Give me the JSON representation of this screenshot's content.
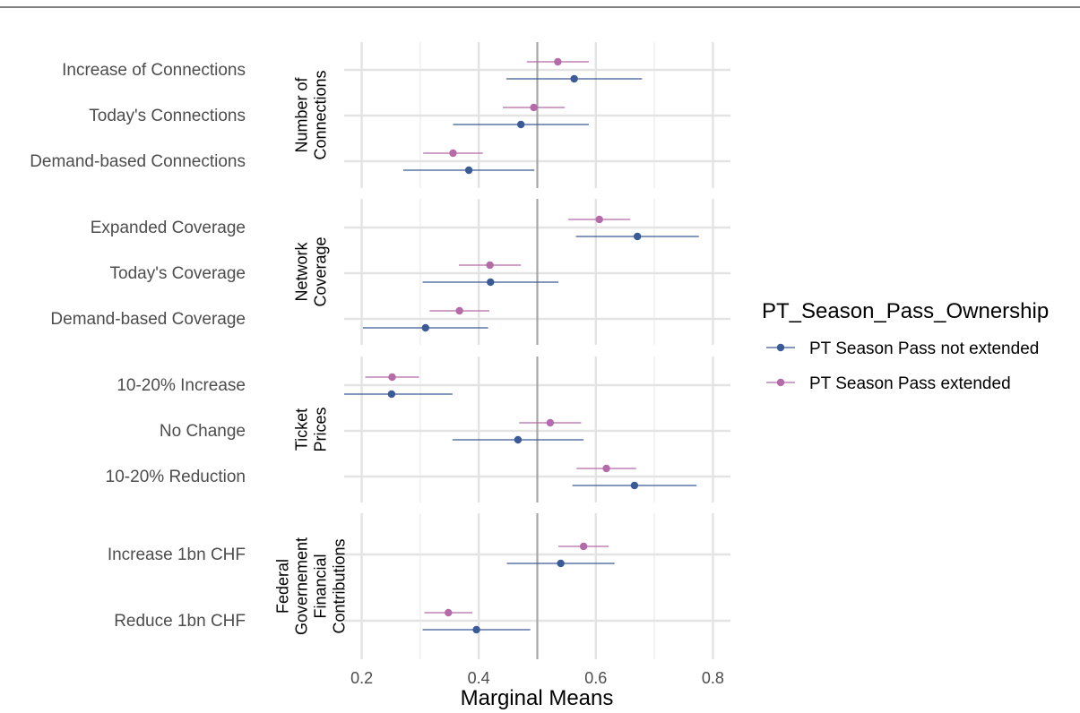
{
  "chart_data": {
    "type": "scatter",
    "subtype": "dot-and-whisker",
    "xlabel": "Marginal Means",
    "xlim": [
      0.17,
      0.83
    ],
    "x_ticks": [
      "0.2",
      "0.4",
      "0.6",
      "0.8"
    ],
    "x_tick_values": [
      0.2,
      0.4,
      0.6,
      0.8
    ],
    "reference_line": 0.5,
    "grid": true,
    "legend": {
      "title": "PT_Season_Pass_Ownership",
      "placement": "right",
      "entries": [
        {
          "name": "PT Season Pass not extended",
          "color": "#3a5b98"
        },
        {
          "name": "PT Season Pass extended",
          "color": "#b56ba9"
        }
      ]
    },
    "panels": [
      {
        "label_lines": [
          "Number of",
          "Connections"
        ],
        "levels": [
          {
            "label": "Increase of Connections",
            "not_extended": {
              "estimate": 0.563,
              "lower": 0.447,
              "upper": 0.679
            },
            "extended": {
              "estimate": 0.535,
              "lower": 0.482,
              "upper": 0.588
            }
          },
          {
            "label": "Today's Connections",
            "not_extended": {
              "estimate": 0.472,
              "lower": 0.356,
              "upper": 0.588
            },
            "extended": {
              "estimate": 0.494,
              "lower": 0.441,
              "upper": 0.547
            }
          },
          {
            "label": "Demand-based Connections",
            "not_extended": {
              "estimate": 0.383,
              "lower": 0.271,
              "upper": 0.495
            },
            "extended": {
              "estimate": 0.356,
              "lower": 0.305,
              "upper": 0.407
            }
          }
        ]
      },
      {
        "label_lines": [
          "Network",
          "Coverage"
        ],
        "levels": [
          {
            "label": "Expanded Coverage",
            "not_extended": {
              "estimate": 0.671,
              "lower": 0.566,
              "upper": 0.776
            },
            "extended": {
              "estimate": 0.606,
              "lower": 0.553,
              "upper": 0.659
            }
          },
          {
            "label": "Today's Coverage",
            "not_extended": {
              "estimate": 0.42,
              "lower": 0.304,
              "upper": 0.536
            },
            "extended": {
              "estimate": 0.419,
              "lower": 0.366,
              "upper": 0.472
            }
          },
          {
            "label": "Demand-based Coverage",
            "not_extended": {
              "estimate": 0.309,
              "lower": 0.202,
              "upper": 0.416
            },
            "extended": {
              "estimate": 0.367,
              "lower": 0.316,
              "upper": 0.418
            }
          }
        ]
      },
      {
        "label_lines": [
          "Ticket",
          "Prices"
        ],
        "levels": [
          {
            "label": "10-20% Increase",
            "not_extended": {
              "estimate": 0.251,
              "lower": 0.147,
              "upper": 0.355
            },
            "extended": {
              "estimate": 0.252,
              "lower": 0.206,
              "upper": 0.298
            }
          },
          {
            "label": "No Change",
            "not_extended": {
              "estimate": 0.467,
              "lower": 0.355,
              "upper": 0.579
            },
            "extended": {
              "estimate": 0.522,
              "lower": 0.469,
              "upper": 0.575
            }
          },
          {
            "label": "10-20% Reduction",
            "not_extended": {
              "estimate": 0.666,
              "lower": 0.56,
              "upper": 0.772
            },
            "extended": {
              "estimate": 0.618,
              "lower": 0.567,
              "upper": 0.669
            }
          }
        ]
      },
      {
        "label_lines": [
          "Federal",
          "Governement",
          "Financial",
          "Contributions"
        ],
        "levels": [
          {
            "label": "Increase 1bn CHF",
            "not_extended": {
              "estimate": 0.54,
              "lower": 0.448,
              "upper": 0.632
            },
            "extended": {
              "estimate": 0.579,
              "lower": 0.536,
              "upper": 0.622
            }
          },
          {
            "label": "Reduce 1bn CHF",
            "not_extended": {
              "estimate": 0.396,
              "lower": 0.304,
              "upper": 0.488
            },
            "extended": {
              "estimate": 0.348,
              "lower": 0.307,
              "upper": 0.389
            }
          }
        ]
      }
    ]
  }
}
